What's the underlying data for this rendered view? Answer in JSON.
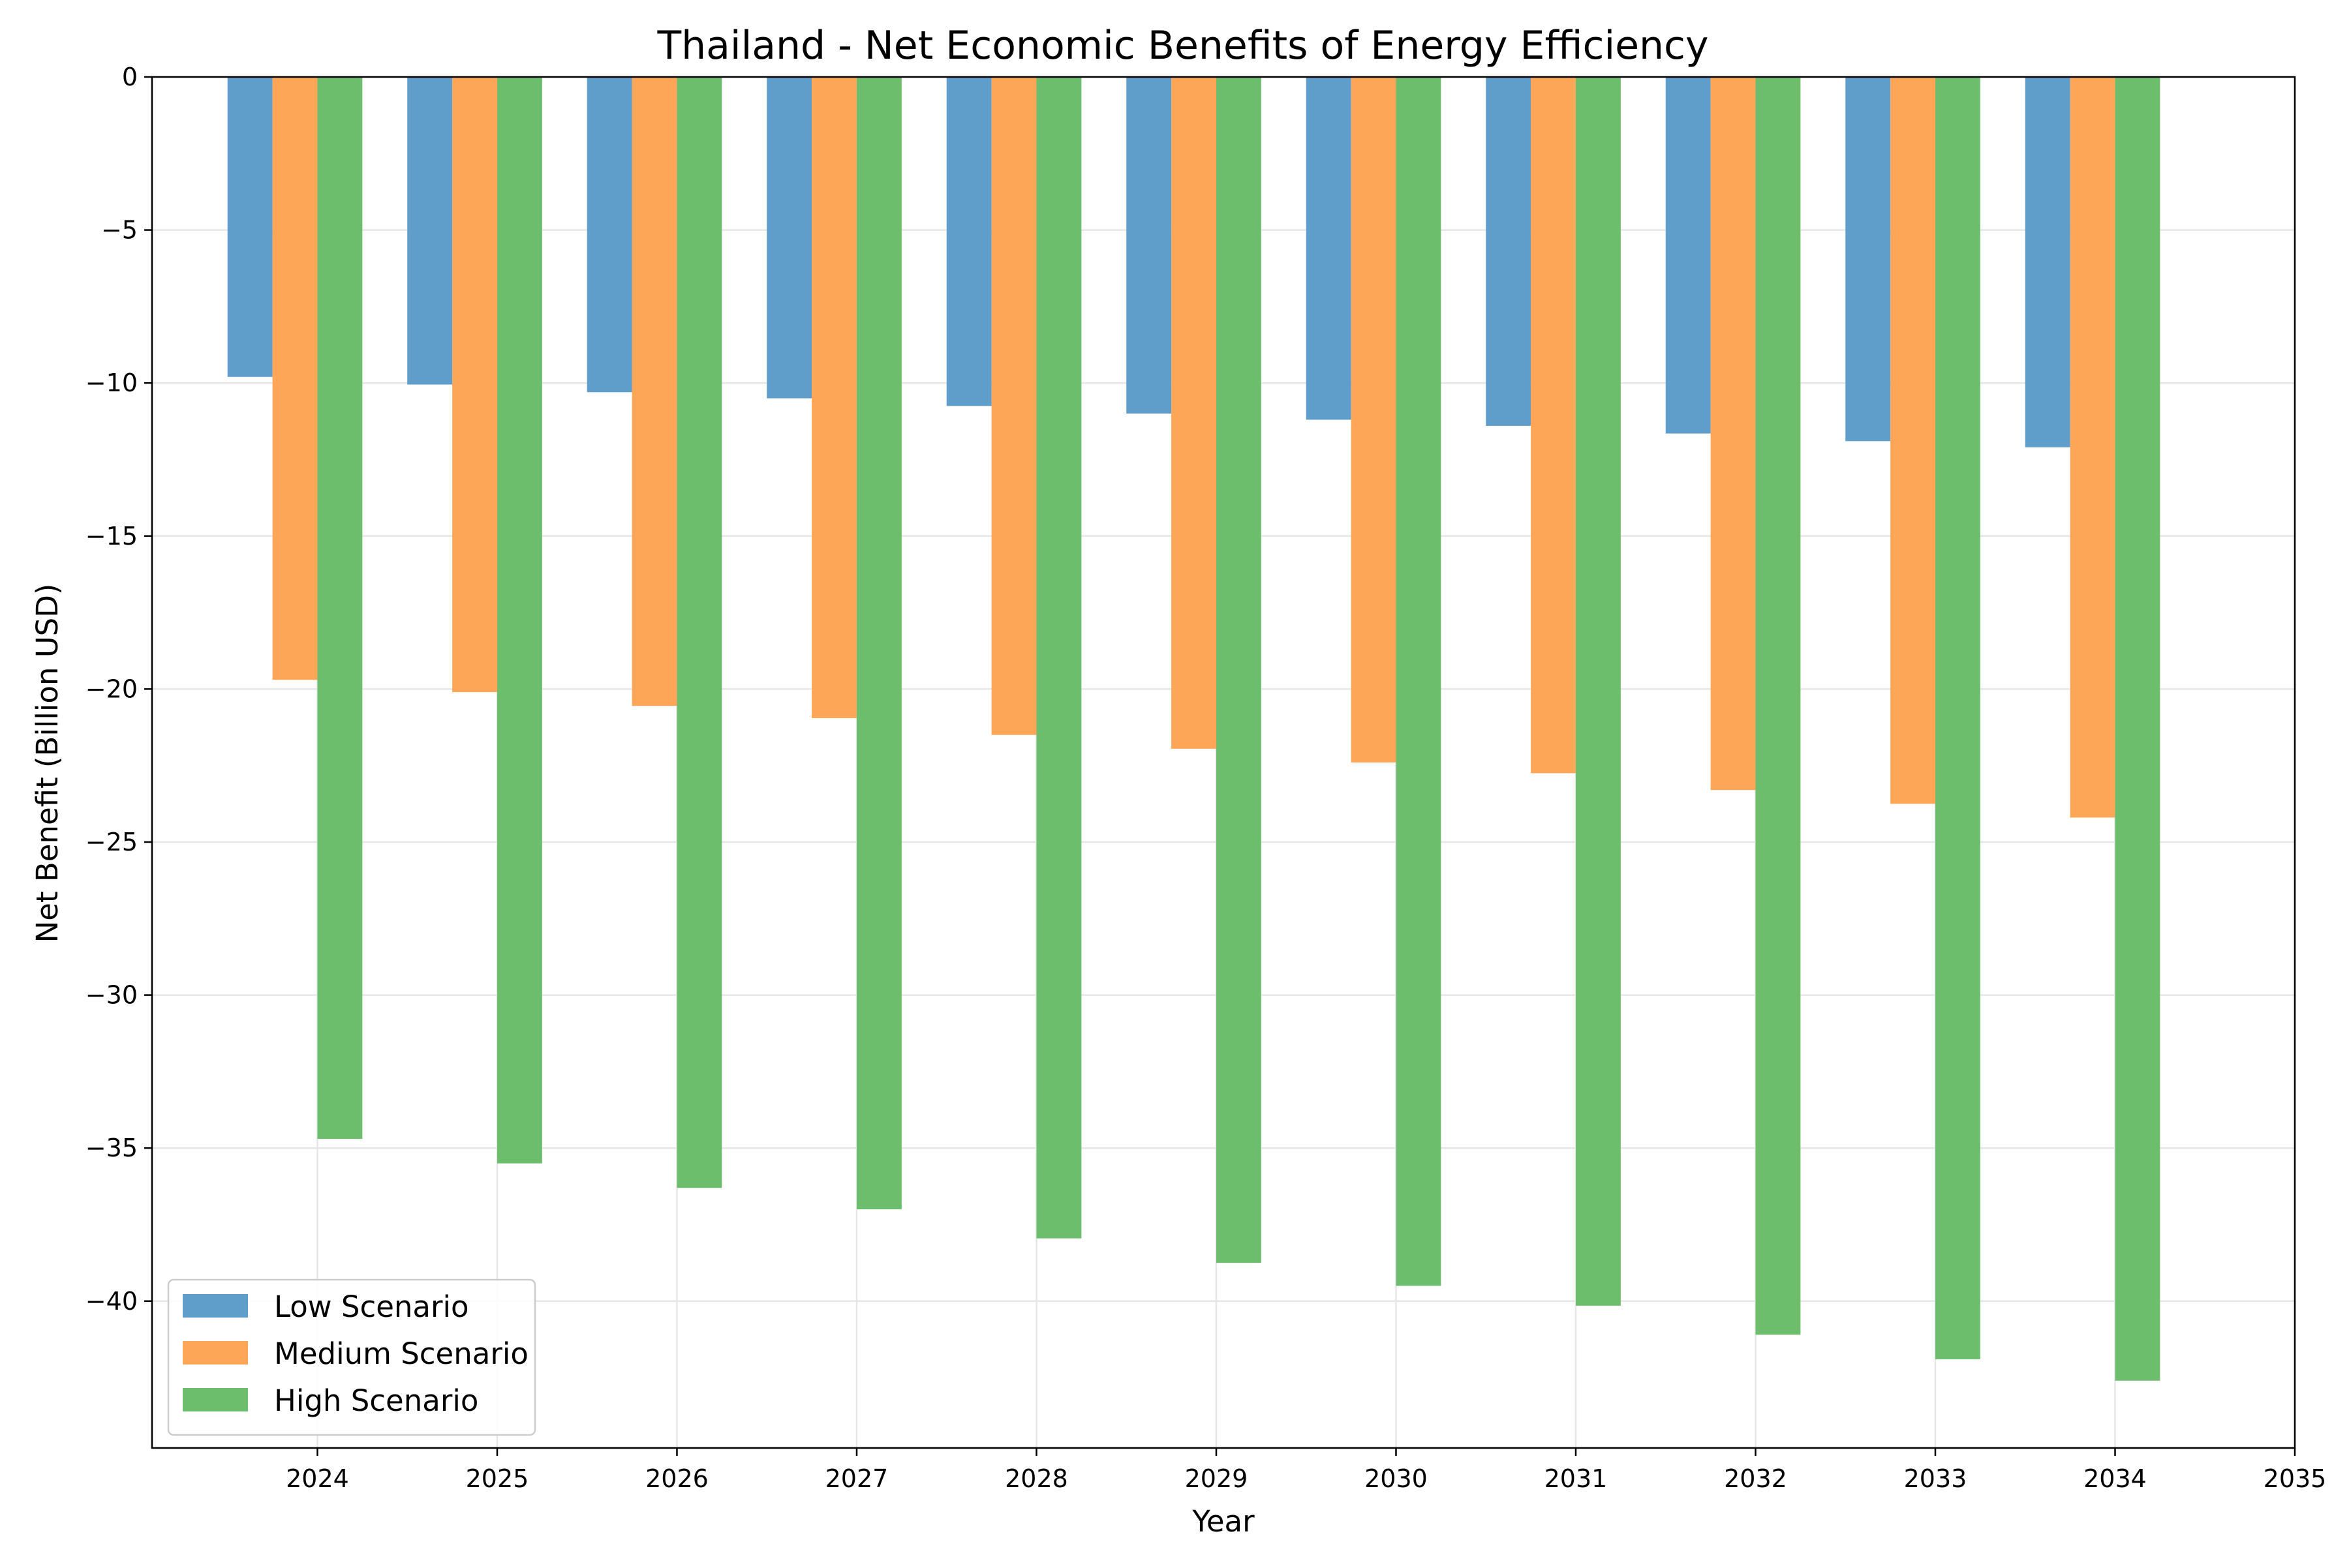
{
  "chart_data": {
    "type": "bar",
    "title": "Thailand - Net Economic Benefits of Energy Efficiency",
    "xlabel": "Year",
    "ylabel": "Net Benefit (Billion USD)",
    "categories": [
      2024,
      2025,
      2026,
      2027,
      2028,
      2029,
      2030,
      2031,
      2032,
      2033,
      2034
    ],
    "x_ticks": [
      "2024",
      "2025",
      "2026",
      "2027",
      "2028",
      "2029",
      "2030",
      "2031",
      "2032",
      "2033",
      "2034",
      "2035"
    ],
    "y_ticks": [
      "0",
      "−5",
      "−10",
      "−15",
      "−20",
      "−25",
      "−30",
      "−35",
      "−40"
    ],
    "xlim": [
      2023.08,
      2035
    ],
    "ylim": [
      -44.8,
      0
    ],
    "grid": true,
    "legend_position": "lower-left",
    "series": [
      {
        "name": "Low Scenario",
        "color": "#5f9ecb",
        "values": [
          -9.8,
          -10.05,
          -10.3,
          -10.5,
          -10.75,
          -11.0,
          -11.2,
          -11.4,
          -11.65,
          -11.9,
          -12.1
        ]
      },
      {
        "name": "Medium Scenario",
        "color": "#fda657",
        "values": [
          -19.7,
          -20.1,
          -20.55,
          -20.95,
          -21.5,
          -21.95,
          -22.4,
          -22.75,
          -23.3,
          -23.75,
          -24.2
        ]
      },
      {
        "name": "High Scenario",
        "color": "#6cbd6c",
        "values": [
          -34.7,
          -35.5,
          -36.3,
          -37.0,
          -37.95,
          -38.75,
          -39.5,
          -40.15,
          -41.1,
          -41.9,
          -42.6
        ]
      }
    ]
  }
}
